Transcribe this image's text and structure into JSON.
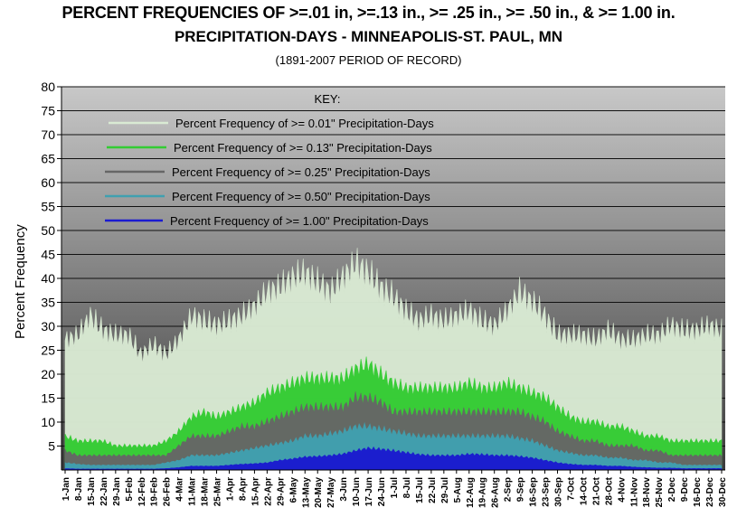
{
  "title": "PERCENT FREQUENCIES OF >=.01 in,  >=.13 in., >= .25 in., >= .50 in., & >= 1.00 in.",
  "subtitle": "PRECIPITATION-DAYS  - MINNEAPOLIS-ST. PAUL, MN",
  "period": "(1891-2007 PERIOD OF RECORD)",
  "chart_data": {
    "type": "area",
    "ylabel": "Percent Frequency",
    "xlabel": "",
    "ylim": [
      0,
      80
    ],
    "yticks": [
      5,
      10,
      15,
      20,
      25,
      30,
      35,
      40,
      45,
      50,
      55,
      60,
      65,
      70,
      75,
      80
    ],
    "grid": true,
    "legend_title": "KEY:",
    "legend_position": "top-left inside plot",
    "x_tick_labels": [
      "1-Jan",
      "8-Jan",
      "15-Jan",
      "22-Jan",
      "29-Jan",
      "5-Feb",
      "12-Feb",
      "19-Feb",
      "26-Feb",
      "4-Mar",
      "11-Mar",
      "18-Mar",
      "25-Mar",
      "1-Apr",
      "8-Apr",
      "15-Apr",
      "22-Apr",
      "29-Apr",
      "6-May",
      "13-May",
      "20-May",
      "27-May",
      "3-Jun",
      "10-Jun",
      "17-Jun",
      "24-Jun",
      "1-Jul",
      "8-Jul",
      "15-Jul",
      "22-Jul",
      "29-Jul",
      "5-Aug",
      "12-Aug",
      "19-Aug",
      "26-Aug",
      "2-Sep",
      "9-Sep",
      "16-Sep",
      "23-Sep",
      "30-Sep",
      "7-Oct",
      "14-Oct",
      "21-Oct",
      "28-Oct",
      "4-Nov",
      "11-Nov",
      "18-Nov",
      "25-Nov",
      "2-Dec",
      "9-Dec",
      "16-Dec",
      "23-Dec",
      "30-Dec"
    ],
    "series": [
      {
        "name": "Percent Frequency of >= 0.01\" Precipitation-Days",
        "color": "#d9ead3",
        "values": [
          27,
          28,
          32,
          29,
          28,
          28,
          24,
          26,
          24,
          27,
          32,
          31,
          30,
          31,
          32,
          34,
          37,
          38,
          40,
          41,
          39,
          37,
          40,
          43,
          41,
          38,
          36,
          33,
          31,
          32,
          31,
          32,
          33,
          31,
          30,
          33,
          37,
          35,
          32,
          28,
          28,
          28,
          27,
          29,
          27,
          27,
          28,
          28,
          30,
          29,
          29,
          30,
          29
        ]
      },
      {
        "name": "Percent Frequency of >= 0.13\" Precipitation-Days",
        "color": "#33cc33",
        "values": [
          7,
          6,
          6,
          6,
          5,
          5,
          5,
          5,
          6,
          8,
          11,
          12,
          11,
          12,
          13,
          14,
          16,
          17,
          18,
          19,
          19,
          19,
          19,
          21,
          22,
          20,
          18,
          17,
          17,
          17,
          17,
          17,
          18,
          17,
          17,
          18,
          17,
          16,
          15,
          13,
          11,
          10,
          10,
          9,
          9,
          8,
          7,
          7,
          6,
          6,
          6,
          6,
          6
        ]
      },
      {
        "name": "Percent Frequency of >= 0.25\" Precipitation-Days",
        "color": "#666666",
        "values": [
          4,
          3,
          3,
          3,
          3,
          3,
          3,
          3,
          3,
          5,
          7,
          7,
          7,
          8,
          9,
          9,
          10,
          11,
          12,
          13,
          13,
          13,
          13,
          15,
          15,
          14,
          12,
          12,
          12,
          12,
          12,
          12,
          12,
          12,
          12,
          12,
          12,
          11,
          10,
          8,
          7,
          6,
          6,
          5,
          5,
          5,
          4,
          4,
          3,
          3,
          3,
          3,
          3
        ]
      },
      {
        "name": "Percent Frequency of >= 0.50\" Precipitation-Days",
        "color": "#40a0b0",
        "values": [
          1.5,
          1.2,
          1,
          1,
          1,
          1,
          1,
          1,
          1.5,
          2,
          3,
          3,
          3,
          3.5,
          4,
          4.5,
          5,
          5.5,
          6,
          7,
          7,
          7.5,
          8,
          9,
          9,
          8.5,
          8,
          7.5,
          7,
          7,
          7,
          7,
          7,
          7,
          7,
          7,
          6.5,
          6,
          5,
          4,
          3.5,
          3,
          3,
          2.5,
          2.5,
          2,
          2,
          1.5,
          1.5,
          1,
          1,
          1,
          1
        ]
      },
      {
        "name": "Percent Frequency of >= 1.00\" Precipitation-Days",
        "color": "#1a1ad0",
        "values": [
          0.3,
          0.2,
          0.2,
          0.2,
          0.2,
          0.2,
          0.2,
          0.2,
          0.3,
          0.5,
          0.8,
          0.8,
          0.8,
          1,
          1.2,
          1.3,
          1.5,
          2,
          2.3,
          2.7,
          2.8,
          3,
          3.3,
          4,
          4.5,
          4.3,
          4,
          3.6,
          3.2,
          3,
          3,
          3,
          3.3,
          3.2,
          3,
          3,
          2.8,
          2.5,
          2,
          1.5,
          1.2,
          1,
          1,
          0.8,
          0.8,
          0.6,
          0.5,
          0.4,
          0.4,
          0.3,
          0.3,
          0.3,
          0.3
        ]
      }
    ]
  }
}
